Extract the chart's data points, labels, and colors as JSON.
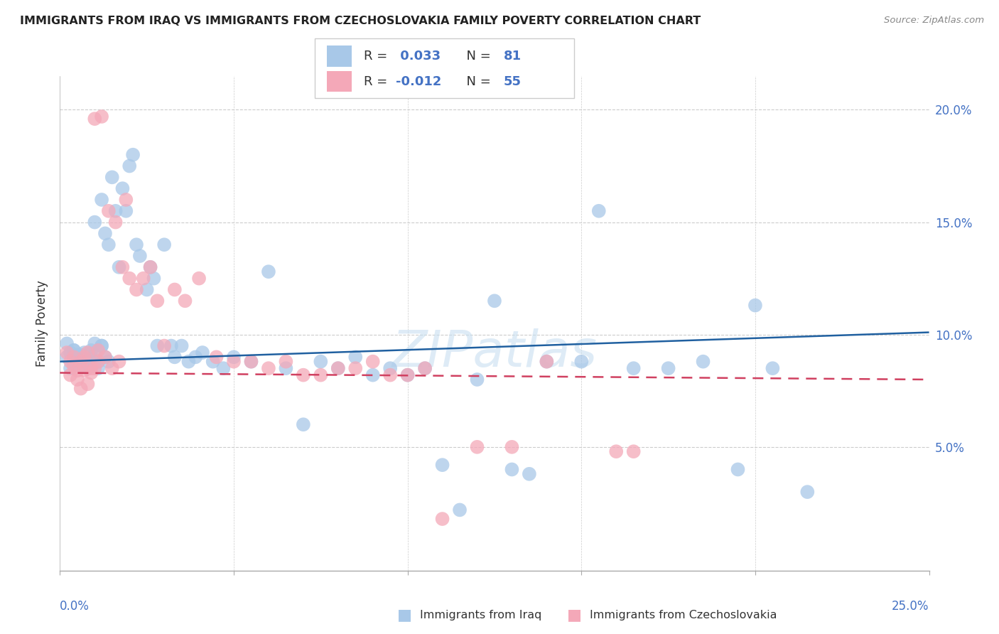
{
  "title": "IMMIGRANTS FROM IRAQ VS IMMIGRANTS FROM CZECHOSLOVAKIA FAMILY POVERTY CORRELATION CHART",
  "source": "Source: ZipAtlas.com",
  "ylabel": "Family Poverty",
  "iraq_color": "#a8c8e8",
  "czech_color": "#f4a8b8",
  "iraq_line_color": "#2060a0",
  "czech_line_color": "#d04060",
  "watermark": "ZIPatlas",
  "xlim": [
    0.0,
    0.25
  ],
  "ylim": [
    -0.005,
    0.215
  ],
  "yticks": [
    0.05,
    0.1,
    0.15,
    0.2
  ],
  "ytick_labels": [
    "5.0%",
    "10.0%",
    "15.0%",
    "20.0%"
  ],
  "xtick_labels": [
    "0.0%",
    "25.0%"
  ],
  "legend_R1": "R =  0.033",
  "legend_N1": "N = 81",
  "legend_R2": "R = -0.012",
  "legend_N2": "N = 55",
  "label_iraq": "Immigrants from Iraq",
  "label_czech": "Immigrants from Czechoslovakia",
  "iraq_trend_y0": 0.088,
  "iraq_trend_y1": 0.101,
  "czech_trend_y0": 0.083,
  "czech_trend_y1": 0.08,
  "iraq_x": [
    0.002,
    0.003,
    0.003,
    0.004,
    0.004,
    0.005,
    0.005,
    0.006,
    0.006,
    0.007,
    0.007,
    0.008,
    0.008,
    0.009,
    0.009,
    0.01,
    0.01,
    0.011,
    0.011,
    0.012,
    0.012,
    0.013,
    0.013,
    0.014,
    0.014,
    0.015,
    0.016,
    0.017,
    0.018,
    0.019,
    0.02,
    0.021,
    0.022,
    0.023,
    0.025,
    0.026,
    0.027,
    0.028,
    0.03,
    0.032,
    0.033,
    0.035,
    0.037,
    0.039,
    0.041,
    0.044,
    0.047,
    0.05,
    0.055,
    0.06,
    0.065,
    0.07,
    0.075,
    0.08,
    0.085,
    0.09,
    0.095,
    0.1,
    0.105,
    0.11,
    0.115,
    0.12,
    0.125,
    0.13,
    0.135,
    0.14,
    0.15,
    0.155,
    0.165,
    0.175,
    0.185,
    0.195,
    0.205,
    0.215,
    0.002,
    0.004,
    0.006,
    0.008,
    0.01,
    0.012,
    0.2
  ],
  "iraq_y": [
    0.09,
    0.092,
    0.085,
    0.093,
    0.088,
    0.091,
    0.087,
    0.09,
    0.086,
    0.092,
    0.088,
    0.09,
    0.085,
    0.093,
    0.087,
    0.15,
    0.091,
    0.088,
    0.085,
    0.16,
    0.095,
    0.145,
    0.09,
    0.14,
    0.088,
    0.17,
    0.155,
    0.13,
    0.165,
    0.155,
    0.175,
    0.18,
    0.14,
    0.135,
    0.12,
    0.13,
    0.125,
    0.095,
    0.14,
    0.095,
    0.09,
    0.095,
    0.088,
    0.09,
    0.092,
    0.088,
    0.085,
    0.09,
    0.088,
    0.128,
    0.085,
    0.06,
    0.088,
    0.085,
    0.09,
    0.082,
    0.085,
    0.082,
    0.085,
    0.042,
    0.022,
    0.08,
    0.115,
    0.04,
    0.038,
    0.088,
    0.088,
    0.155,
    0.085,
    0.085,
    0.088,
    0.04,
    0.085,
    0.03,
    0.096,
    0.093,
    0.091,
    0.088,
    0.096,
    0.095,
    0.113
  ],
  "czech_x": [
    0.002,
    0.003,
    0.003,
    0.004,
    0.004,
    0.005,
    0.005,
    0.006,
    0.006,
    0.007,
    0.007,
    0.008,
    0.008,
    0.009,
    0.009,
    0.01,
    0.01,
    0.011,
    0.011,
    0.012,
    0.013,
    0.014,
    0.015,
    0.016,
    0.017,
    0.018,
    0.019,
    0.02,
    0.022,
    0.024,
    0.026,
    0.028,
    0.03,
    0.033,
    0.036,
    0.04,
    0.045,
    0.05,
    0.055,
    0.06,
    0.065,
    0.07,
    0.075,
    0.08,
    0.085,
    0.09,
    0.095,
    0.1,
    0.105,
    0.11,
    0.12,
    0.13,
    0.14,
    0.16,
    0.165
  ],
  "czech_y": [
    0.092,
    0.088,
    0.082,
    0.086,
    0.09,
    0.084,
    0.08,
    0.088,
    0.076,
    0.09,
    0.084,
    0.092,
    0.078,
    0.085,
    0.083,
    0.196,
    0.085,
    0.093,
    0.088,
    0.197,
    0.09,
    0.155,
    0.085,
    0.15,
    0.088,
    0.13,
    0.16,
    0.125,
    0.12,
    0.125,
    0.13,
    0.115,
    0.095,
    0.12,
    0.115,
    0.125,
    0.09,
    0.088,
    0.088,
    0.085,
    0.088,
    0.082,
    0.082,
    0.085,
    0.085,
    0.088,
    0.082,
    0.082,
    0.085,
    0.018,
    0.05,
    0.05,
    0.088,
    0.048,
    0.048
  ]
}
